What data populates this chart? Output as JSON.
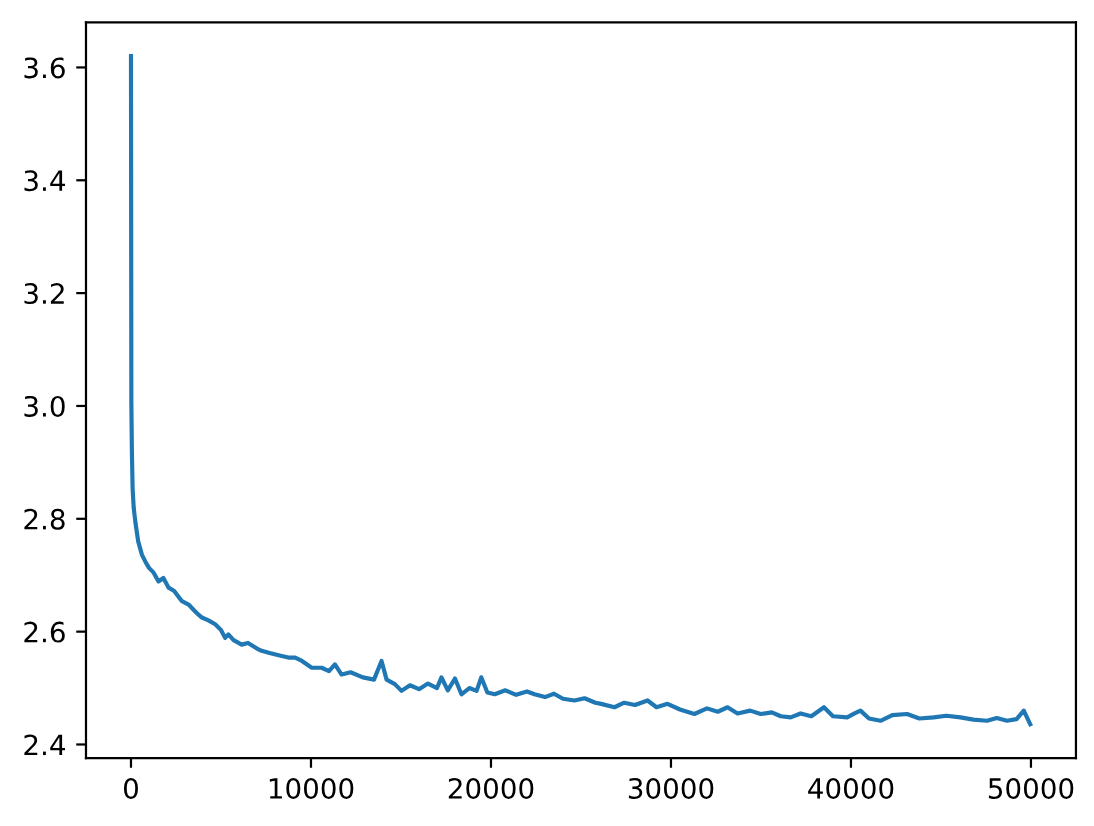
{
  "chart_data": {
    "type": "line",
    "x": [
      0,
      20,
      50,
      90,
      150,
      240,
      400,
      610,
      800,
      1000,
      1250,
      1530,
      1800,
      2090,
      2400,
      2830,
      3200,
      3500,
      3750,
      3940,
      4300,
      4680,
      5000,
      5230,
      5410,
      5700,
      6150,
      6500,
      7000,
      7260,
      7700,
      8200,
      8740,
      9120,
      9500,
      10040,
      10590,
      11000,
      11330,
      11700,
      12200,
      12880,
      13500,
      13920,
      14200,
      14660,
      15030,
      15500,
      16000,
      16500,
      17000,
      17250,
      17600,
      18000,
      18360,
      18800,
      19200,
      19460,
      19800,
      20210,
      20800,
      21400,
      22000,
      22420,
      23000,
      23500,
      24000,
      24640,
      25200,
      25800,
      26120,
      26860,
      27400,
      28000,
      28700,
      29200,
      29810,
      30500,
      31300,
      32000,
      32600,
      33140,
      33700,
      34400,
      34990,
      35600,
      36100,
      36650,
      37200,
      37800,
      38500,
      39000,
      39790,
      40200,
      40530,
      41000,
      41640,
      42300,
      43120,
      43800,
      44600,
      45300,
      46080,
      46800,
      47560,
      48100,
      48670,
      49200,
      49600,
      49960
    ],
    "series": [
      {
        "color": "#1f77b4",
        "values": [
          3.62,
          3.007,
          2.92,
          2.854,
          2.82,
          2.795,
          2.76,
          2.736,
          2.724,
          2.713,
          2.705,
          2.689,
          2.695,
          2.678,
          2.672,
          2.654,
          2.648,
          2.638,
          2.63,
          2.625,
          2.62,
          2.613,
          2.603,
          2.589,
          2.595,
          2.585,
          2.577,
          2.58,
          2.57,
          2.566,
          2.562,
          2.558,
          2.554,
          2.554,
          2.548,
          2.536,
          2.536,
          2.53,
          2.542,
          2.524,
          2.528,
          2.519,
          2.515,
          2.548,
          2.515,
          2.507,
          2.495,
          2.505,
          2.498,
          2.508,
          2.5,
          2.519,
          2.496,
          2.517,
          2.489,
          2.5,
          2.495,
          2.519,
          2.492,
          2.489,
          2.496,
          2.488,
          2.494,
          2.489,
          2.484,
          2.49,
          2.481,
          2.478,
          2.482,
          2.474,
          2.472,
          2.466,
          2.474,
          2.47,
          2.478,
          2.466,
          2.472,
          2.462,
          2.454,
          2.464,
          2.458,
          2.466,
          2.455,
          2.46,
          2.454,
          2.457,
          2.45,
          2.448,
          2.455,
          2.45,
          2.466,
          2.45,
          2.448,
          2.455,
          2.46,
          2.446,
          2.442,
          2.452,
          2.454,
          2.446,
          2.448,
          2.451,
          2.448,
          2.444,
          2.442,
          2.447,
          2.442,
          2.445,
          2.46,
          2.436
        ]
      }
    ],
    "xlim": [
      -2500,
      52500
    ],
    "ylim": [
      2.376,
      3.68
    ],
    "xticks": [
      0,
      10000,
      20000,
      30000,
      40000,
      50000
    ],
    "yticks": [
      2.4,
      2.6,
      2.8,
      {
        "value": 3.0,
        "label": "3.0"
      },
      3.2,
      3.4,
      3.6
    ]
  }
}
